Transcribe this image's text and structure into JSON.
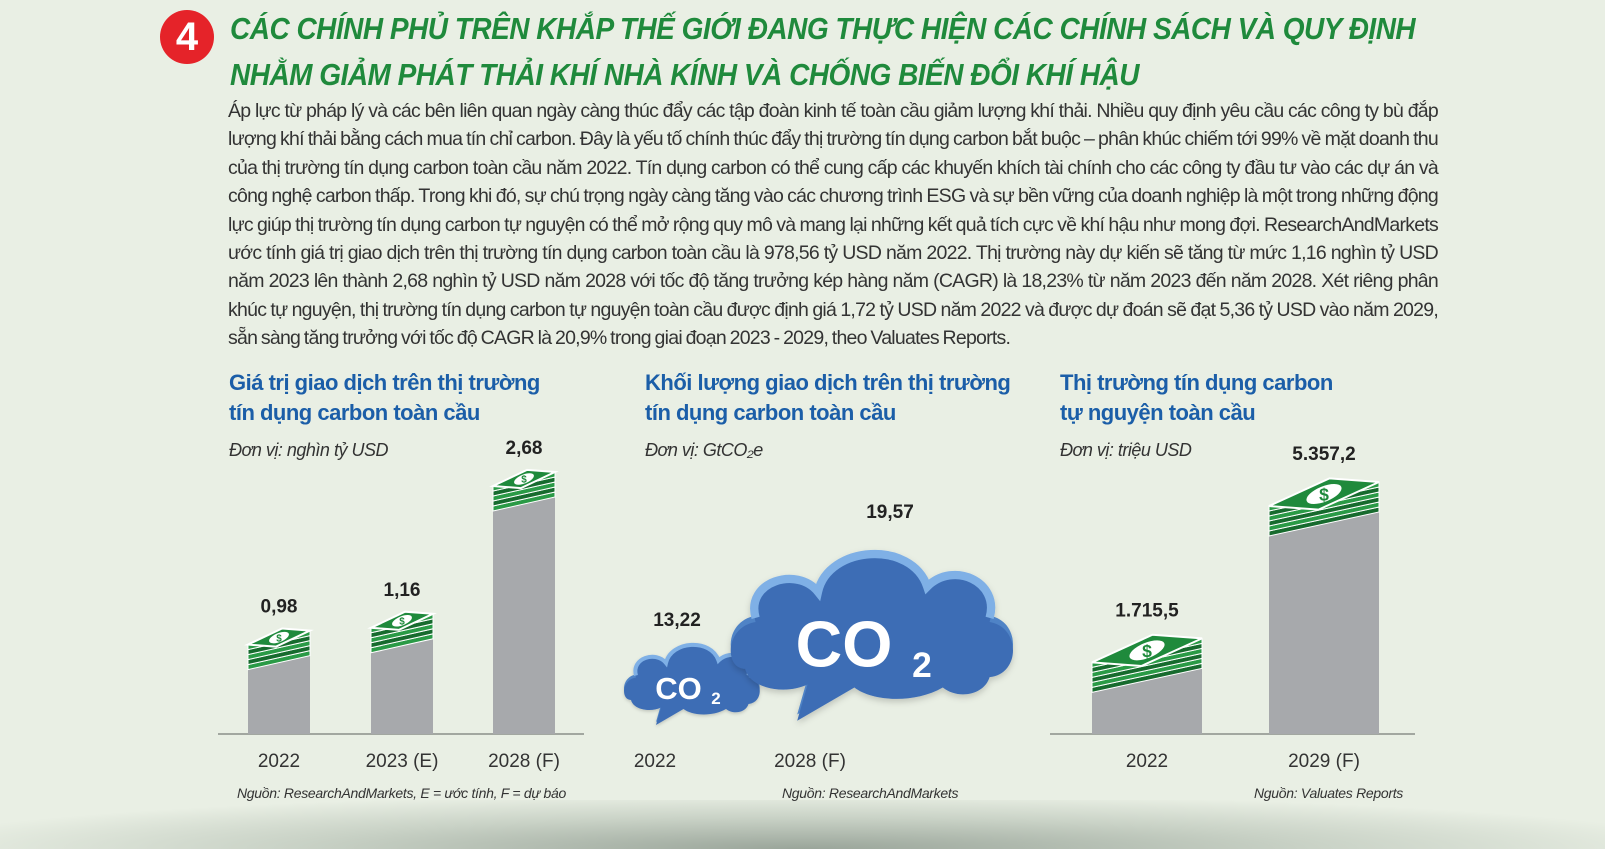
{
  "section": {
    "number": "4",
    "title_lines": [
      "CÁC CHÍNH PHỦ TRÊN KHẮP THẾ GIỚI ĐANG THỰC HIỆN CÁC CHÍNH SÁCH VÀ QUY ĐỊNH",
      "NHẰM GIẢM PHÁT THẢI KHÍ NHÀ KÍNH VÀ CHỐNG BIẾN ĐỔI KHÍ HẬU"
    ],
    "body": "Áp lực từ pháp lý và các bên liên quan ngày càng thúc đẩy các tập đoàn kinh tế toàn cầu giảm lượng khí thải. Nhiều quy định yêu cầu các công ty bù đắp lượng khí thải bằng cách mua tín chỉ carbon. Đây là yếu tố chính thúc đẩy thị trường tín dụng carbon bắt buộc – phân khúc chiếm tới 99% về mặt doanh thu của thị trường tín dụng carbon toàn cầu năm 2022. Tín dụng carbon có thể cung cấp các khuyến khích tài chính cho các công ty đầu tư vào các dự án và công nghệ carbon thấp. Trong khi đó, sự chú trọng ngày càng tăng vào các chương trình ESG và sự bền vững của doanh nghiệp là một trong những động lực giúp thị trường tín dụng carbon tự nguyện có thể mở rộng quy mô và mang lại những kết quả tích cực về khí hậu như mong đợi. ResearchAndMarkets ước tính giá trị giao dịch trên thị trường tín dụng carbon toàn cầu là 978,56 tỷ USD năm 2022. Thị trường này dự kiến sẽ tăng từ mức 1,16 nghìn tỷ USD năm 2023 lên thành 2,68 nghìn tỷ USD năm 2028 với tốc độ tăng trưởng kép hàng năm (CAGR) là 18,23% từ năm 2023 đến năm 2028. Xét riêng phân khúc tự nguyện, thị trường tín dụng carbon tự nguyện toàn cầu được định giá 1,72 tỷ USD năm 2022 và được dự đoán sẽ đạt 5,36 tỷ USD vào năm 2029, sẵn sàng tăng trưởng với tốc độ CAGR là 20,9% trong giai đoạn 2023 - 2029, theo Valuates Reports."
  },
  "colors": {
    "headline": "#1f8a3c",
    "badge": "#e52329",
    "panel_title": "#1b5ea8",
    "bar": "#a7a9ac",
    "money": "#1f8a3c",
    "cloud": "#3d6db5"
  },
  "chart_data": [
    {
      "type": "bar",
      "title_lines": [
        "Giá trị giao dịch trên thị trường",
        "tín dụng carbon toàn cầu"
      ],
      "unit": "Đơn vị: nghìn tỷ USD",
      "categories": [
        "2022",
        "2023 (E)",
        "2028 (F)"
      ],
      "values": [
        0.98,
        1.16,
        2.68
      ],
      "value_labels": [
        "0,98",
        "1,16",
        "2,68"
      ],
      "source": "Nguồn: ResearchAndMarkets, E = ước tính, F = dự báo",
      "icon": "money-stack-icon"
    },
    {
      "type": "bar",
      "title_lines": [
        "Khối lượng giao dịch trên thị trường",
        "tín dụng carbon toàn cầu"
      ],
      "unit": "Đơn vị: GtCO₂e",
      "categories": [
        "2022",
        "2028 (F)"
      ],
      "values": [
        13.22,
        19.57
      ],
      "value_labels": [
        "13,22",
        "19,57"
      ],
      "source": "Nguồn: ResearchAndMarkets",
      "icon": "co2-cloud-icon",
      "co2_main": "CO",
      "co2_sub": "2"
    },
    {
      "type": "bar",
      "title_lines": [
        "Thị trường tín dụng carbon",
        "tự nguyện toàn cầu"
      ],
      "unit": "Đơn vị: triệu USD",
      "categories": [
        "2022",
        "2029 (F)"
      ],
      "values": [
        1715.5,
        5357.2
      ],
      "value_labels": [
        "1.715,5",
        "5.357,2"
      ],
      "source": "Nguồn: Valuates Reports",
      "icon": "money-stack-icon"
    }
  ]
}
